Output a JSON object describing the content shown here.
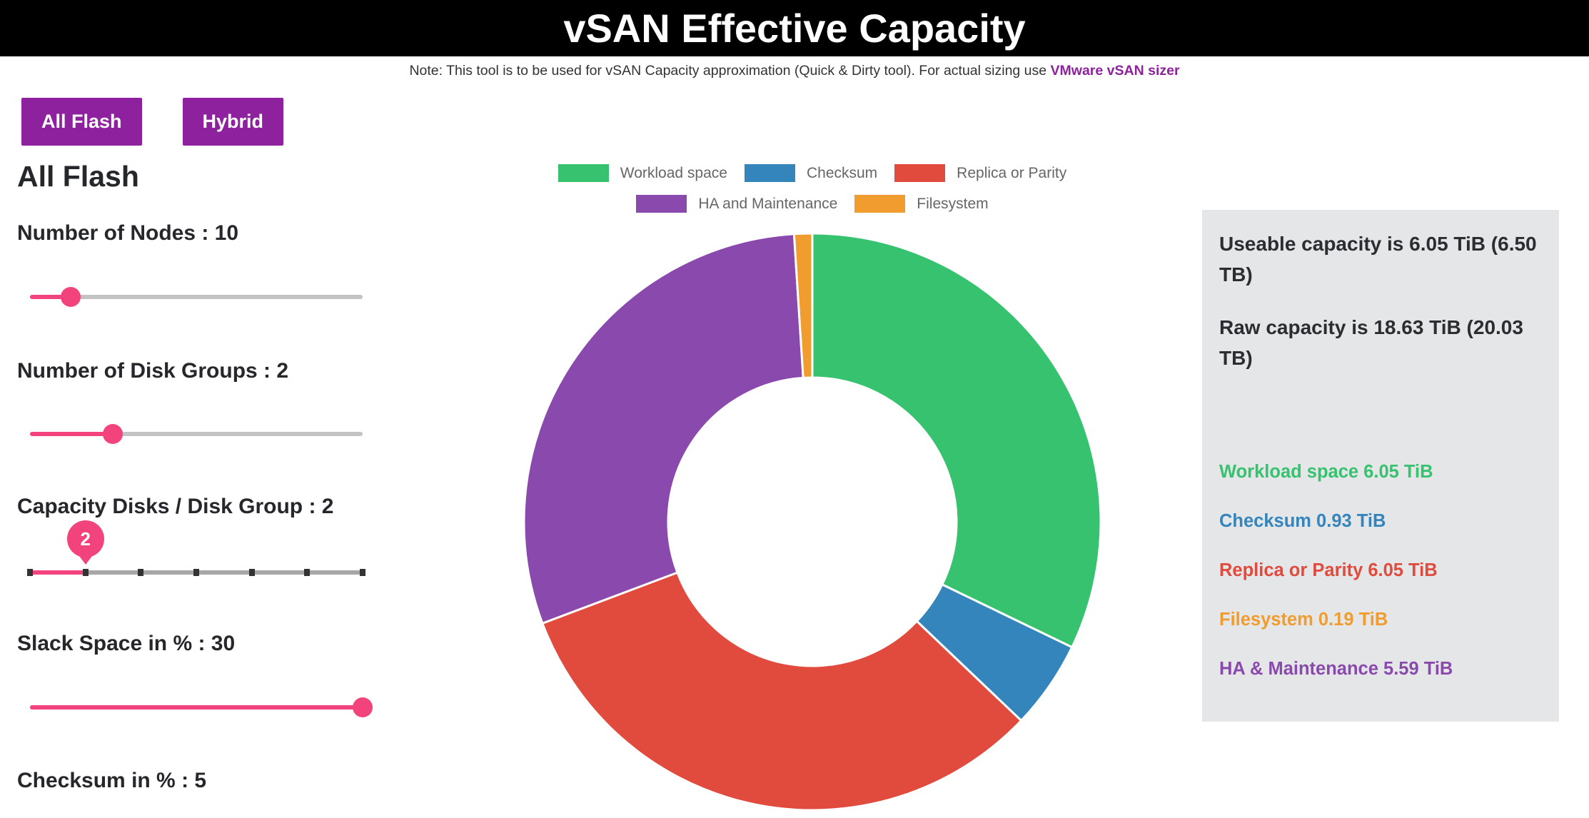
{
  "header": {
    "title": "vSAN Effective Capacity"
  },
  "note": {
    "text": "Note: This tool is to be used for vSAN Capacity approximation (Quick & Dirty tool). For actual sizing use ",
    "link_label": "VMware vSAN sizer"
  },
  "buttons": {
    "all_flash": "All Flash",
    "hybrid": "Hybrid"
  },
  "section_title": "All Flash",
  "sliders": [
    {
      "id": "nodes",
      "label": "Number of Nodes : 10",
      "value": 10,
      "fraction": 0.123
    },
    {
      "id": "disk-groups",
      "label": "Number of Disk Groups : 2",
      "value": 2,
      "fraction": 0.249
    },
    {
      "id": "capacity-disks",
      "label": "Capacity Disks / Disk Group : 2",
      "value": 2,
      "fraction": 0.1667,
      "ticks": 7,
      "balloon": "2"
    },
    {
      "id": "slack-space",
      "label": "Slack Space in % : 30",
      "value": 30,
      "fraction": 1
    },
    {
      "id": "checksum",
      "label": "Checksum in % : 5",
      "value": 5
    }
  ],
  "chart_data": {
    "type": "pie",
    "style": "doughnut",
    "title": "",
    "legend_position": "top",
    "direction": "clockwise",
    "start_angle_deg": 0,
    "inner_radius_ratio": 0.5,
    "segments": [
      {
        "label": "Workload space",
        "value_tib": 6.05,
        "color": "#36c26f"
      },
      {
        "label": "Checksum",
        "value_tib": 0.93,
        "color": "#3585bd"
      },
      {
        "label": "Replica or Parity",
        "value_tib": 6.05,
        "color": "#e14b3e"
      },
      {
        "label": "HA and Maintenance",
        "value_tib": 5.59,
        "color": "#8a49ac"
      },
      {
        "label": "Filesystem",
        "value_tib": 0.19,
        "color": "#f09c2e"
      }
    ],
    "legend_rows": [
      [
        "Workload space",
        "Checksum",
        "Replica or Parity"
      ],
      [
        "HA and Maintenance",
        "Filesystem"
      ]
    ]
  },
  "summary_panel": {
    "useable_capacity": "Useable capacity is 6.05 TiB (6.50 TB)",
    "raw_capacity": "Raw capacity is 18.63 TiB (20.03 TB)",
    "items": [
      {
        "label": "Workload space 6.05 TiB",
        "color": "#36c26f"
      },
      {
        "label": "Checksum 0.93 TiB",
        "color": "#3585bd"
      },
      {
        "label": "Replica or Parity 6.05 TiB",
        "color": "#e14b3e"
      },
      {
        "label": "Filesystem 0.19 TiB",
        "color": "#f09c2e"
      },
      {
        "label": "HA & Maintenance 5.59 TiB",
        "color": "#8a49ac"
      }
    ]
  },
  "colors": {
    "accent_pink": "#f3437c",
    "button_purple": "#8e219e",
    "link_purple": "#8e219e",
    "track_gray": "#c3c3c3",
    "tick_track_gray": "#a7a7a7",
    "tick_dark": "#333333",
    "panel_bg": "#e5e6e7",
    "header_bg": "#000000",
    "header_text": "#ffffff",
    "legend_text": "#666666",
    "text_dark": "#26272b"
  }
}
